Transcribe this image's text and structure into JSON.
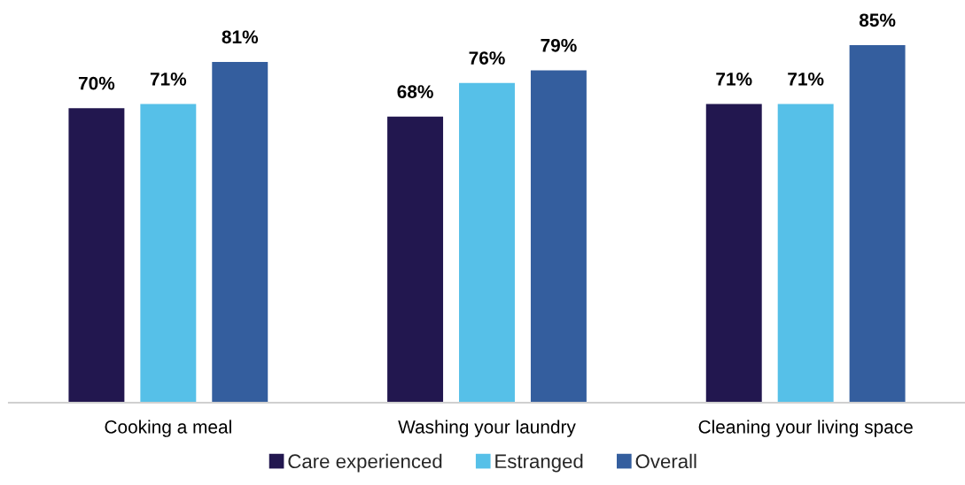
{
  "chart_data": {
    "type": "bar",
    "categories": [
      "Cooking a meal",
      "Washing your laundry",
      "Cleaning your living space"
    ],
    "series": [
      {
        "name": "Care experienced",
        "color": "#22174f",
        "values": [
          70,
          68,
          71
        ],
        "value_labels": [
          "70%",
          "68%",
          "71%"
        ]
      },
      {
        "name": "Estranged",
        "color": "#56c0e8",
        "values": [
          71,
          76,
          71
        ],
        "value_labels": [
          "71%",
          "76%",
          "71%"
        ]
      },
      {
        "name": "Overall",
        "color": "#345e9e",
        "values": [
          81,
          79,
          85
        ],
        "value_labels": [
          "81%",
          "79%",
          "85%"
        ]
      }
    ],
    "legend": "bottom",
    "grid": false
  }
}
